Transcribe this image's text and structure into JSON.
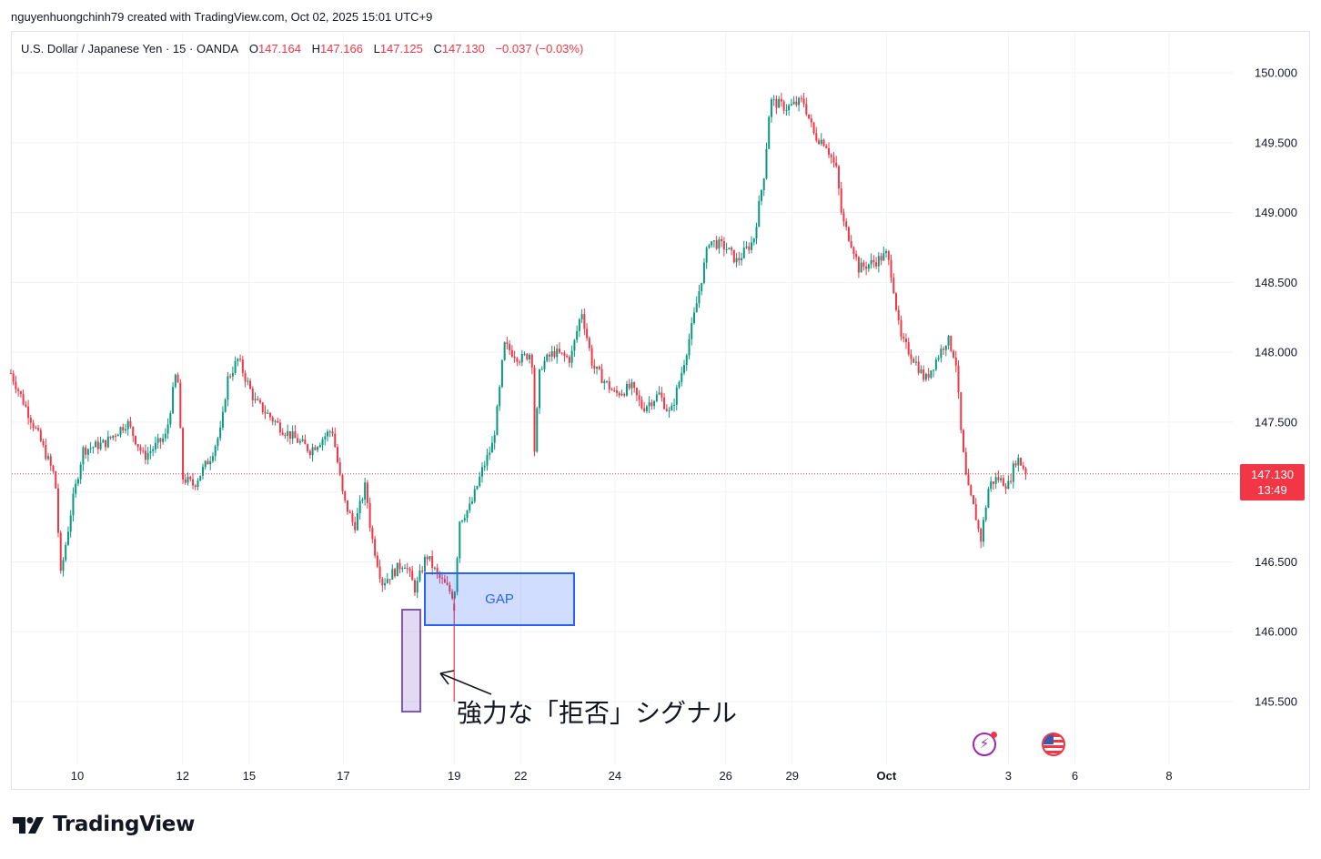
{
  "header": {
    "credit": "nguyenhuongchinh79 created with TradingView.com, Oct 02, 2025 15:01 UTC+9"
  },
  "legend": {
    "symbol": "U.S. Dollar / Japanese Yen · 15 · OANDA",
    "open_label": "O",
    "open": "147.164",
    "high_label": "H",
    "high": "147.166",
    "low_label": "L",
    "low": "147.125",
    "close_label": "C",
    "close": "147.130",
    "change": "−0.037 (−0.03%)"
  },
  "price_tag": {
    "price": "147.130",
    "countdown": "13:49"
  },
  "annotations": {
    "gap_label": "GAP",
    "rejection_text": "強力な「拒否」シグナル"
  },
  "events": {
    "flash_icon": "lightning-icon",
    "flag_icon": "us-flag-icon"
  },
  "brand": {
    "name": "TradingView"
  },
  "colors": {
    "up": "#089981",
    "down": "#f23645",
    "gap": "#2962ff",
    "rejection": "#7e57c2"
  },
  "chart_data": {
    "type": "candlestick",
    "symbol": "USDJPY",
    "interval": "15",
    "current_price": 147.13,
    "ylim": [
      145.1,
      150.2
    ],
    "y_ticks": [
      145.5,
      146.0,
      146.5,
      147.0,
      147.5,
      148.0,
      148.5,
      149.0,
      149.5,
      150.0
    ],
    "y_tick_labels": [
      "145.500",
      "146.000",
      "146.500",
      "147.000",
      "147.500",
      "148.000",
      "148.500",
      "149.000",
      "149.500",
      "150.000"
    ],
    "x_tick_labels": [
      "10",
      "12",
      "15",
      "17",
      "19",
      "22",
      "24",
      "26",
      "29",
      "Oct",
      "3",
      "6",
      "8"
    ],
    "x_tick_bold": [
      false,
      false,
      false,
      false,
      false,
      false,
      false,
      false,
      false,
      true,
      false,
      false,
      false
    ],
    "x_tick_days": [
      3.1,
      5.0,
      6.2,
      7.9,
      9.9,
      11.1,
      12.8,
      14.8,
      16.0,
      17.7,
      19.9,
      21.1,
      22.8
    ],
    "xlim": [
      1.9,
      24.3
    ],
    "price_path": [
      {
        "day": 1.9,
        "price": 147.85
      },
      {
        "day": 2.4,
        "price": 147.4
      },
      {
        "day": 2.7,
        "price": 147.1
      },
      {
        "day": 2.8,
        "price": 146.4
      },
      {
        "day": 3.0,
        "price": 146.9
      },
      {
        "day": 3.2,
        "price": 147.3
      },
      {
        "day": 3.6,
        "price": 147.35
      },
      {
        "day": 4.0,
        "price": 147.5
      },
      {
        "day": 4.3,
        "price": 147.25
      },
      {
        "day": 4.7,
        "price": 147.4
      },
      {
        "day": 4.9,
        "price": 147.9
      },
      {
        "day": 5.0,
        "price": 147.1
      },
      {
        "day": 5.2,
        "price": 147.05
      },
      {
        "day": 5.5,
        "price": 147.25
      },
      {
        "day": 5.7,
        "price": 147.45
      },
      {
        "day": 5.8,
        "price": 147.8
      },
      {
        "day": 6.0,
        "price": 147.95
      },
      {
        "day": 6.3,
        "price": 147.65
      },
      {
        "day": 6.8,
        "price": 147.45
      },
      {
        "day": 7.3,
        "price": 147.3
      },
      {
        "day": 7.7,
        "price": 147.45
      },
      {
        "day": 7.9,
        "price": 146.95
      },
      {
        "day": 8.1,
        "price": 146.75
      },
      {
        "day": 8.3,
        "price": 147.05
      },
      {
        "day": 8.4,
        "price": 146.7
      },
      {
        "day": 8.6,
        "price": 146.35
      },
      {
        "day": 9.0,
        "price": 146.5
      },
      {
        "day": 9.2,
        "price": 146.3
      },
      {
        "day": 9.4,
        "price": 146.55
      },
      {
        "day": 9.6,
        "price": 146.4
      },
      {
        "day": 9.9,
        "price": 146.25
      },
      {
        "day": 10.0,
        "price": 146.8
      },
      {
        "day": 10.2,
        "price": 146.9
      },
      {
        "day": 10.4,
        "price": 147.15
      },
      {
        "day": 10.6,
        "price": 147.35
      },
      {
        "day": 10.7,
        "price": 147.65
      },
      {
        "day": 10.8,
        "price": 148.05
      },
      {
        "day": 11.1,
        "price": 147.95
      },
      {
        "day": 11.3,
        "price": 148.0
      },
      {
        "day": 11.35,
        "price": 147.3
      },
      {
        "day": 11.45,
        "price": 147.9
      },
      {
        "day": 11.7,
        "price": 148.0
      },
      {
        "day": 12.0,
        "price": 147.95
      },
      {
        "day": 12.2,
        "price": 148.3
      },
      {
        "day": 12.4,
        "price": 147.9
      },
      {
        "day": 12.6,
        "price": 147.8
      },
      {
        "day": 12.8,
        "price": 147.7
      },
      {
        "day": 13.1,
        "price": 147.75
      },
      {
        "day": 13.3,
        "price": 147.6
      },
      {
        "day": 13.6,
        "price": 147.7
      },
      {
        "day": 13.8,
        "price": 147.55
      },
      {
        "day": 14.0,
        "price": 147.85
      },
      {
        "day": 14.2,
        "price": 148.2
      },
      {
        "day": 14.35,
        "price": 148.5
      },
      {
        "day": 14.5,
        "price": 148.8
      },
      {
        "day": 14.8,
        "price": 148.75
      },
      {
        "day": 15.0,
        "price": 148.65
      },
      {
        "day": 15.3,
        "price": 148.8
      },
      {
        "day": 15.5,
        "price": 149.3
      },
      {
        "day": 15.6,
        "price": 149.8
      },
      {
        "day": 15.9,
        "price": 149.75
      },
      {
        "day": 16.2,
        "price": 149.8
      },
      {
        "day": 16.4,
        "price": 149.55
      },
      {
        "day": 16.6,
        "price": 149.5
      },
      {
        "day": 16.8,
        "price": 149.3
      },
      {
        "day": 16.9,
        "price": 148.95
      },
      {
        "day": 17.1,
        "price": 148.75
      },
      {
        "day": 17.2,
        "price": 148.6
      },
      {
        "day": 17.5,
        "price": 148.65
      },
      {
        "day": 17.7,
        "price": 148.7
      },
      {
        "day": 17.8,
        "price": 148.55
      },
      {
        "day": 17.95,
        "price": 148.1
      },
      {
        "day": 18.2,
        "price": 147.95
      },
      {
        "day": 18.4,
        "price": 147.8
      },
      {
        "day": 18.6,
        "price": 147.95
      },
      {
        "day": 18.8,
        "price": 148.1
      },
      {
        "day": 18.95,
        "price": 147.95
      },
      {
        "day": 19.05,
        "price": 147.4
      },
      {
        "day": 19.15,
        "price": 147.05
      },
      {
        "day": 19.3,
        "price": 146.85
      },
      {
        "day": 19.4,
        "price": 146.65
      },
      {
        "day": 19.55,
        "price": 147.05
      },
      {
        "day": 19.7,
        "price": 147.1
      },
      {
        "day": 19.9,
        "price": 147.05
      },
      {
        "day": 20.05,
        "price": 147.25
      },
      {
        "day": 20.25,
        "price": 147.13
      }
    ],
    "rejection_wick": {
      "day": 9.9,
      "open": 146.2,
      "high": 146.25,
      "low": 145.5,
      "close": 146.15
    },
    "annotations": [
      {
        "type": "box",
        "label": "GAP",
        "price_top": 146.42,
        "price_bottom": 146.04,
        "day_start": 10.05,
        "day_end": 12.8
      },
      {
        "type": "box",
        "label": "rejection",
        "price_top": 146.15,
        "price_bottom": 145.42,
        "day_start": 9.63,
        "day_end": 10.0
      }
    ]
  }
}
